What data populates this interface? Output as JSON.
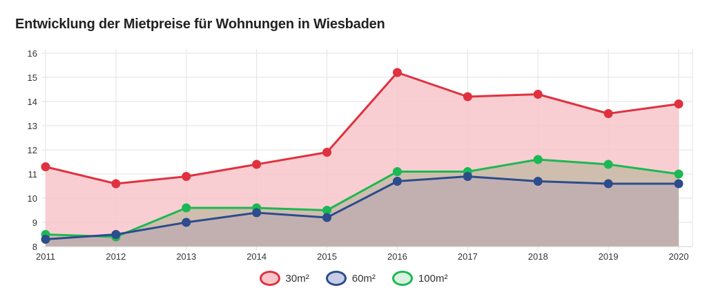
{
  "chart_data": {
    "type": "area",
    "title": "Entwicklung der Mietpreise für Wohnungen in Wiesbaden",
    "categories": [
      "2011",
      "2012",
      "2013",
      "2014",
      "2015",
      "2016",
      "2017",
      "2018",
      "2019",
      "2020"
    ],
    "y_ticks": [
      "8",
      "9",
      "10",
      "11",
      "12",
      "13",
      "14",
      "15",
      "16"
    ],
    "ylim": [
      8,
      16
    ],
    "grid": true,
    "legend_position": "bottom-center",
    "series": [
      {
        "name": "30m²",
        "color": "#e0313f",
        "fill": "#f7c6ca",
        "values": [
          11.3,
          10.6,
          10.9,
          11.4,
          11.9,
          15.2,
          14.2,
          14.3,
          13.5,
          13.9
        ]
      },
      {
        "name": "100m²",
        "color": "#1bb853",
        "fill": "#c8bba8",
        "values": [
          8.5,
          8.4,
          9.6,
          9.6,
          9.5,
          11.1,
          11.1,
          11.6,
          11.4,
          11.0
        ]
      },
      {
        "name": "60m²",
        "color": "#2c4c8c",
        "fill": "#bfaeb2",
        "values": [
          8.3,
          8.5,
          9.0,
          9.4,
          9.2,
          10.7,
          10.9,
          10.7,
          10.6,
          10.6
        ]
      }
    ]
  }
}
